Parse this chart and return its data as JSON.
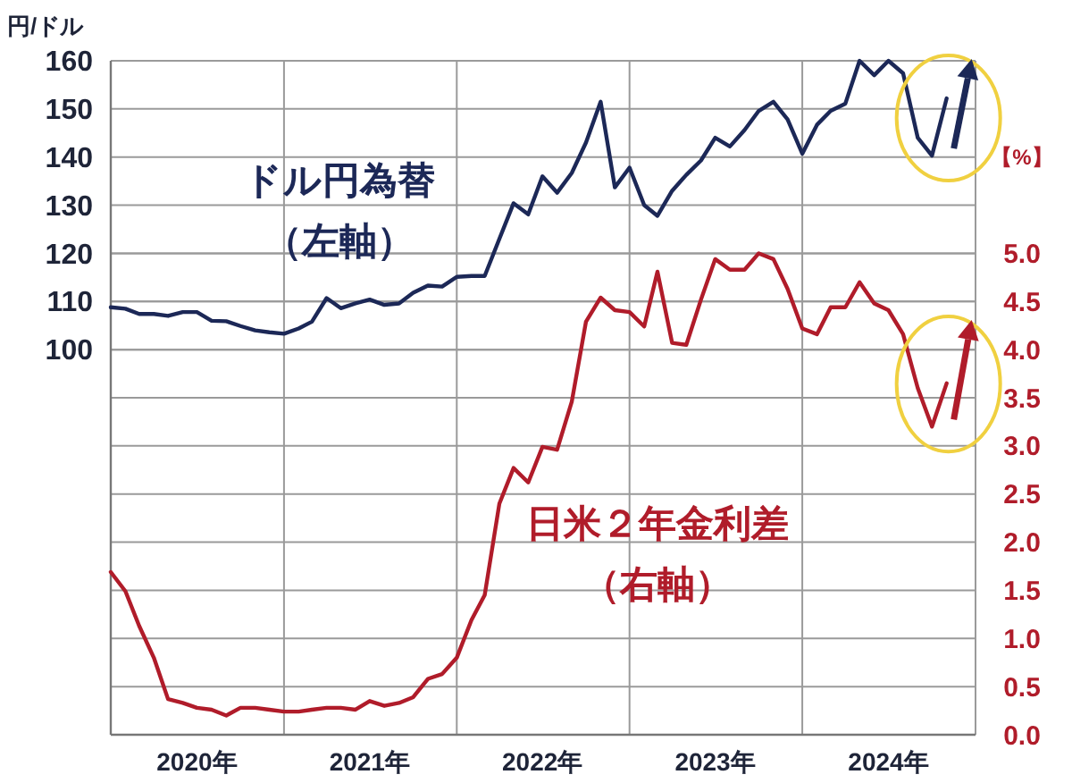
{
  "chart_data": {
    "type": "line",
    "ylabel": "円/ドル",
    "y2label": "【%】",
    "x": [
      "2020-01",
      "2020-02",
      "2020-03",
      "2020-04",
      "2020-05",
      "2020-06",
      "2020-07",
      "2020-08",
      "2020-09",
      "2020-10",
      "2020-11",
      "2020-12",
      "2021-01",
      "2021-02",
      "2021-03",
      "2021-04",
      "2021-05",
      "2021-06",
      "2021-07",
      "2021-08",
      "2021-09",
      "2021-10",
      "2021-11",
      "2021-12",
      "2022-01",
      "2022-02",
      "2022-03",
      "2022-04",
      "2022-05",
      "2022-06",
      "2022-07",
      "2022-08",
      "2022-09",
      "2022-10",
      "2022-11",
      "2022-12",
      "2023-01",
      "2023-02",
      "2023-03",
      "2023-04",
      "2023-05",
      "2023-06",
      "2023-07",
      "2023-08",
      "2023-09",
      "2023-10",
      "2023-11",
      "2023-12",
      "2024-01",
      "2024-02",
      "2024-03",
      "2024-04",
      "2024-05",
      "2024-06",
      "2024-07",
      "2024-08",
      "2024-09",
      "2024-10",
      "2024-11"
    ],
    "series": [
      {
        "name": "ドル円為替（左軸）",
        "color": "#1c2857",
        "values": [
          108.8,
          108.5,
          107.4,
          107.4,
          107,
          107.8,
          107.8,
          106,
          105.9,
          104.9,
          104,
          103.6,
          103.3,
          104.4,
          105.8,
          110.7,
          108.6,
          109.6,
          110.4,
          109.3,
          109.6,
          111.8,
          113.3,
          113.1,
          115.1,
          115.3,
          115.3,
          123,
          130.4,
          128.1,
          136,
          132.6,
          136.7,
          143,
          151.5,
          133.7,
          137.8,
          130,
          127.8,
          133,
          136.3,
          139.3,
          144,
          142.2,
          145.6,
          149.6,
          151.5,
          147.8,
          140.7,
          146.7,
          149.6,
          151.1,
          160,
          157,
          160,
          157.4,
          144,
          140.3,
          152.2
        ]
      },
      {
        "name": "日米２年金利差（右軸）",
        "color": "#b01c2a",
        "axis": "y2",
        "values": [
          1.69,
          1.49,
          1.13,
          0.8,
          0.37,
          0.33,
          0.28,
          0.26,
          0.2,
          0.28,
          0.28,
          0.26,
          0.24,
          0.24,
          0.26,
          0.28,
          0.28,
          0.26,
          0.35,
          0.3,
          0.33,
          0.39,
          0.58,
          0.63,
          0.8,
          1.19,
          1.45,
          2.4,
          2.77,
          2.62,
          2.99,
          2.96,
          3.46,
          4.29,
          4.54,
          4.41,
          4.39,
          4.24,
          4.81,
          4.07,
          4.05,
          4.52,
          4.94,
          4.83,
          4.83,
          5.0,
          4.94,
          4.63,
          4.22,
          4.16,
          4.44,
          4.44,
          4.7,
          4.48,
          4.41,
          4.16,
          3.6,
          3.2,
          3.65
        ]
      }
    ],
    "xlim": [
      "2020-01",
      "2025-01"
    ],
    "xticks": [
      {
        "value": "2020-07",
        "label": "2020年"
      },
      {
        "value": "2021-01",
        "label": null
      },
      {
        "value": "2021-07",
        "label": "2021年"
      },
      {
        "value": "2022-01",
        "label": null
      },
      {
        "value": "2022-07",
        "label": "2022年"
      },
      {
        "value": "2023-01",
        "label": null
      },
      {
        "value": "2023-07",
        "label": "2023年"
      },
      {
        "value": "2024-01",
        "label": null
      },
      {
        "value": "2024-07",
        "label": "2024年"
      },
      {
        "value": "2025-01",
        "label": null
      }
    ],
    "ylim": [
      20,
      160
    ],
    "yticks": [
      100,
      110,
      120,
      130,
      140,
      150,
      160
    ],
    "y2lim": [
      0,
      7
    ],
    "y2ticks": [
      {
        "value": 0,
        "label": "0.0"
      },
      {
        "value": 0.5,
        "label": "0.5"
      },
      {
        "value": 1,
        "label": "1.0"
      },
      {
        "value": 1.5,
        "label": "1.5"
      },
      {
        "value": 2,
        "label": "2.0"
      },
      {
        "value": 2.5,
        "label": "2.5"
      },
      {
        "value": 3,
        "label": "3.0"
      },
      {
        "value": 3.5,
        "label": "3.5"
      },
      {
        "value": 4,
        "label": "4.0"
      },
      {
        "value": 4.5,
        "label": "4.5"
      },
      {
        "value": 5,
        "label": "5.0"
      }
    ],
    "grid": true,
    "marker": "none",
    "line_style": "solid"
  }
}
